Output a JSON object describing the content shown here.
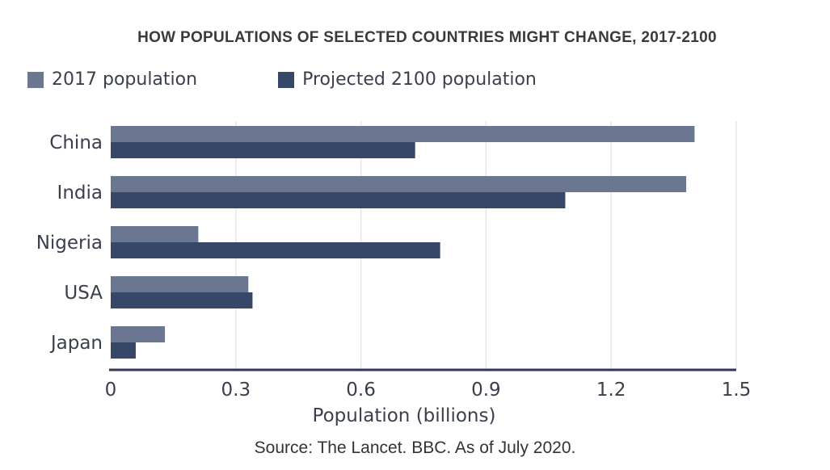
{
  "chart_data": {
    "type": "bar",
    "orientation": "horizontal",
    "title": "HOW POPULATIONS OF SELECTED COUNTRIES MIGHT CHANGE, 2017-2100",
    "categories": [
      "China",
      "India",
      "Nigeria",
      "USA",
      "Japan"
    ],
    "series": [
      {
        "name": "2017 population",
        "color": "#6b7690",
        "values": [
          1.4,
          1.38,
          0.21,
          0.33,
          0.13
        ]
      },
      {
        "name": "Projected 2100 population",
        "color": "#364768",
        "values": [
          0.73,
          1.09,
          0.79,
          0.34,
          0.06
        ]
      }
    ],
    "xlabel": "Population (billions)",
    "ylabel": "",
    "xlim": [
      0,
      1.5
    ],
    "xticks": [
      "0",
      "0.3",
      "0.6",
      "0.9",
      "1.2",
      "1.5"
    ],
    "xtick_values": [
      0,
      0.3,
      0.6,
      0.9,
      1.2,
      1.5
    ],
    "grid": true,
    "legend_position": "top-left",
    "source": "Source: The Lancet. BBC. As of July 2020."
  }
}
